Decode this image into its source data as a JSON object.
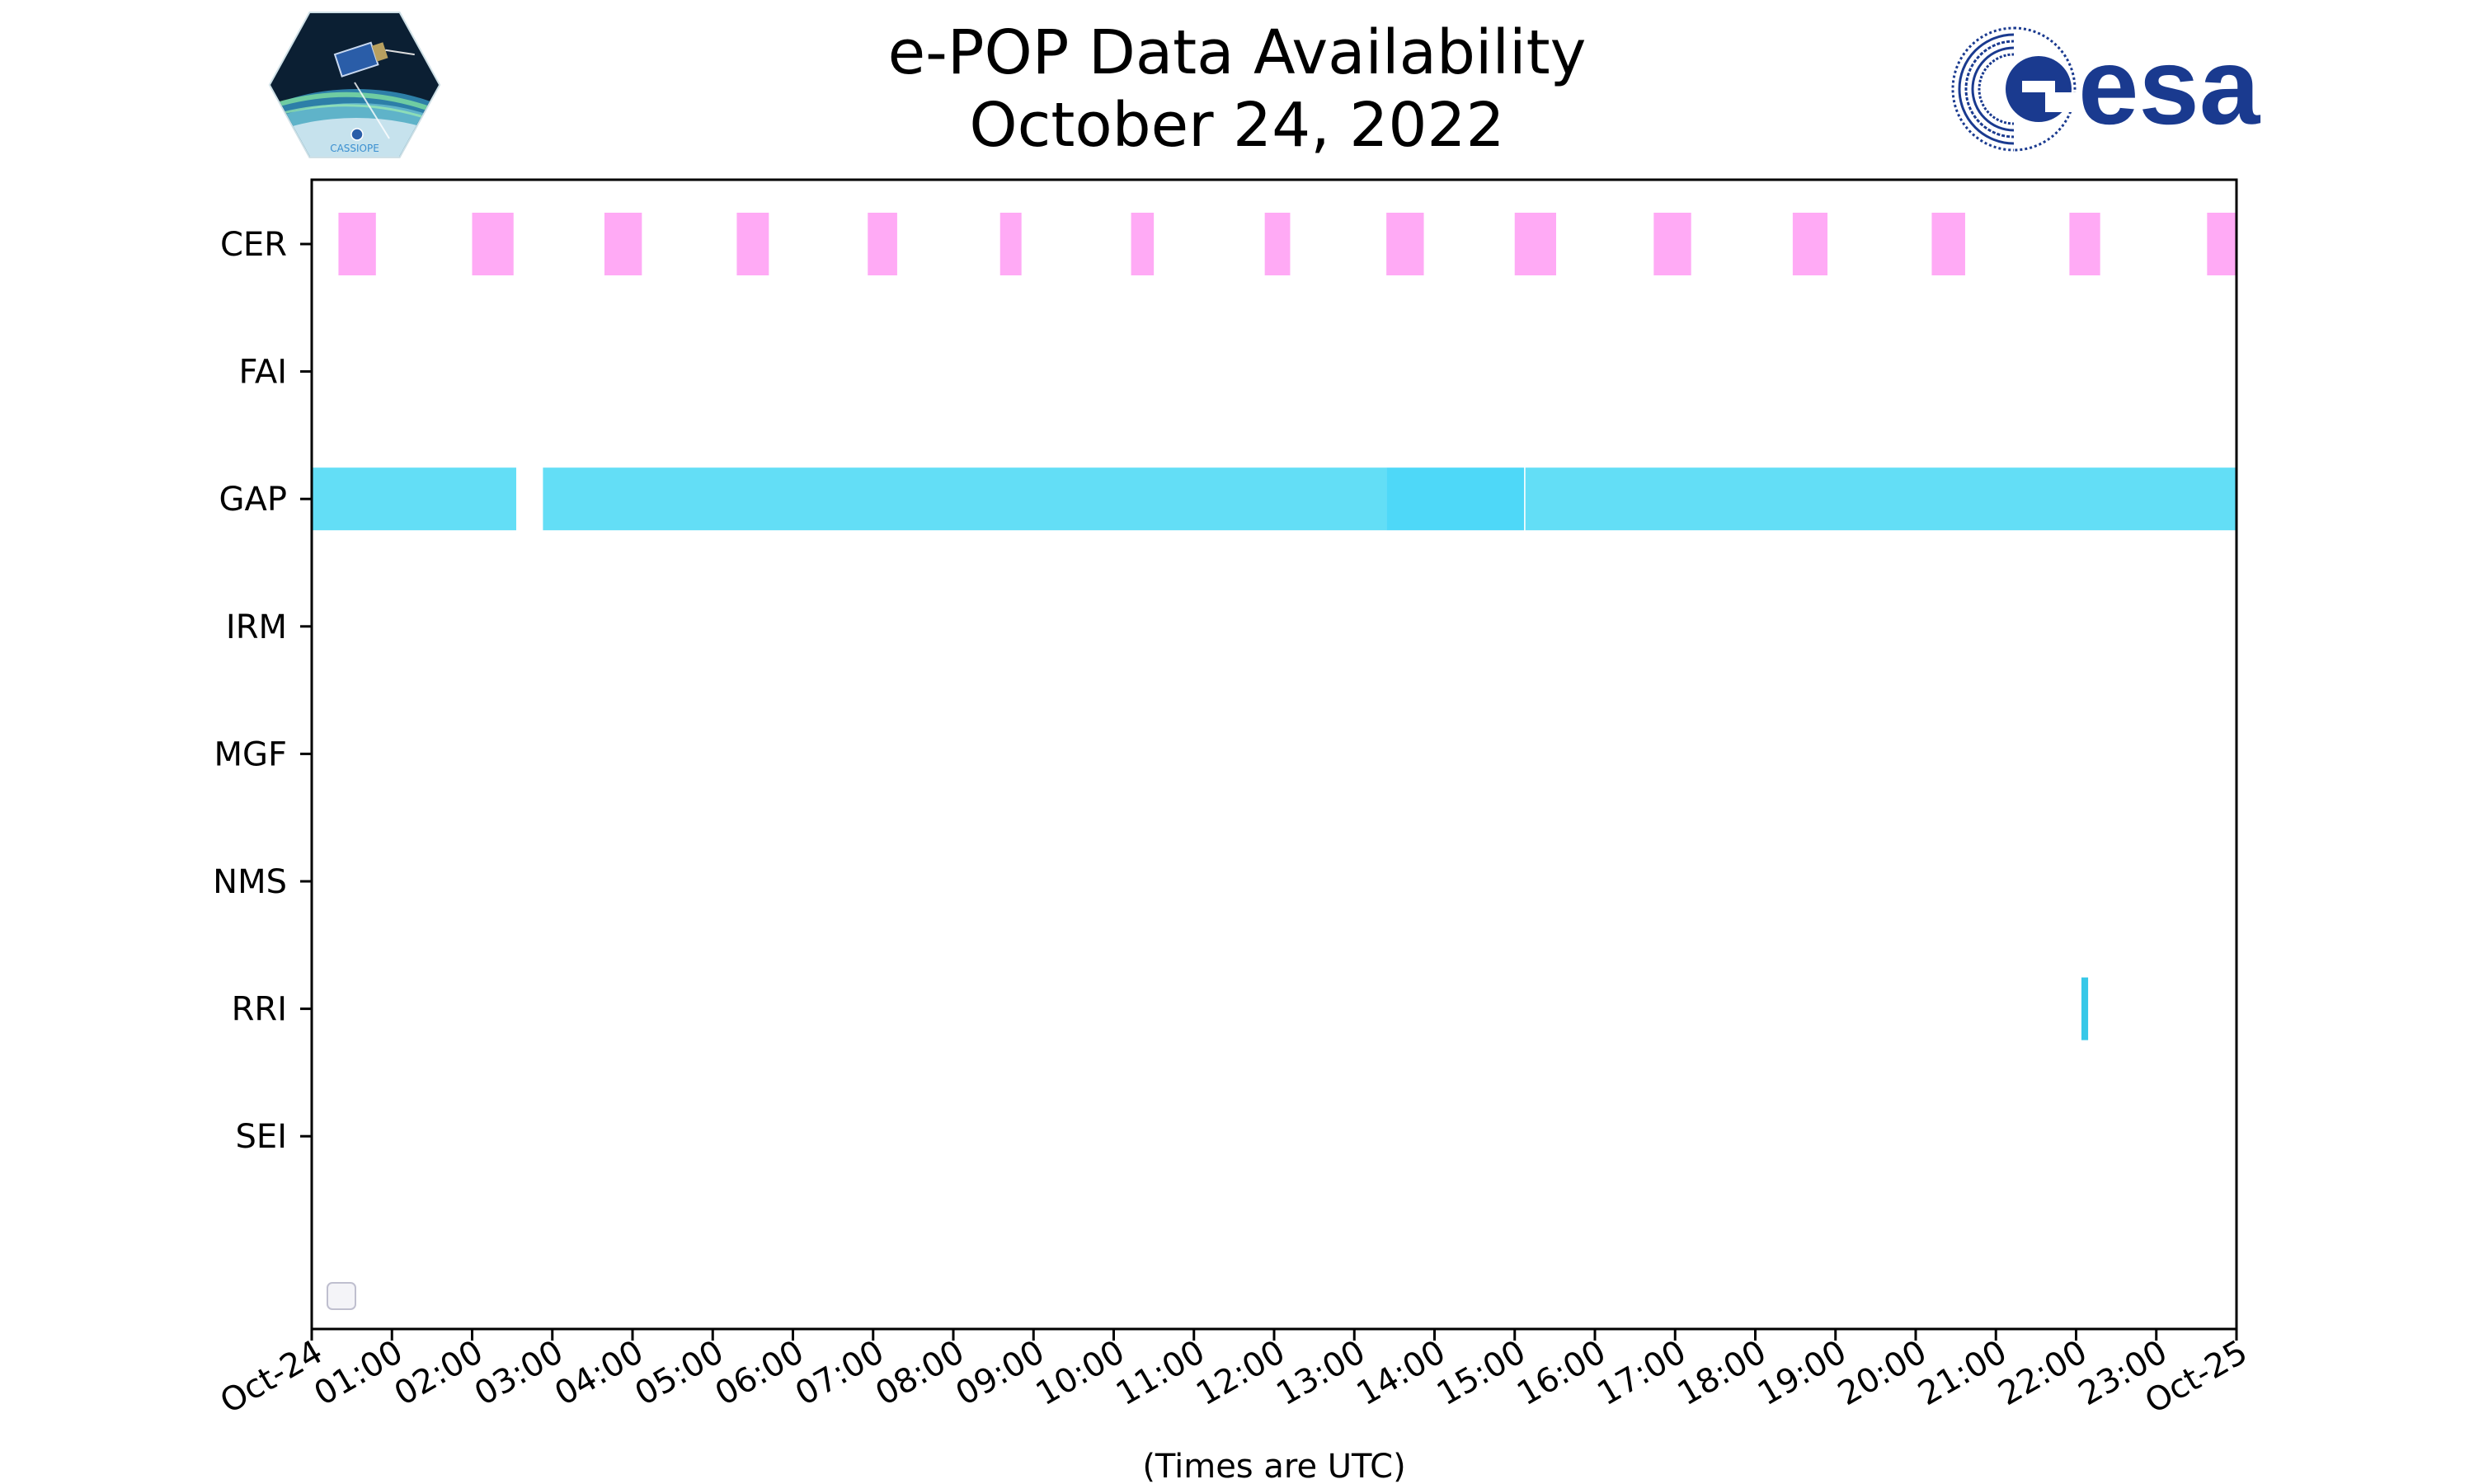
{
  "header": {
    "title_line1": "e-POP Data Availability",
    "title_line2": "October 24, 2022"
  },
  "logos": {
    "left": "CASSIOPE",
    "right": "esa"
  },
  "colors": {
    "cer": "#ffaaf5",
    "gap": "#63def6",
    "gap_dark": "#4ed8f8",
    "rri": "#37c8e8",
    "esa_blue": "#1a3a8f"
  },
  "chart_data": {
    "type": "timeline",
    "xlabel": "(Times are UTC)",
    "x_range": [
      "2022-10-24 00:00",
      "2022-10-25 00:00"
    ],
    "x_ticks": [
      "Oct-24",
      "01:00",
      "02:00",
      "03:00",
      "04:00",
      "05:00",
      "06:00",
      "07:00",
      "08:00",
      "09:00",
      "10:00",
      "11:00",
      "12:00",
      "13:00",
      "14:00",
      "15:00",
      "16:00",
      "17:00",
      "18:00",
      "19:00",
      "20:00",
      "21:00",
      "22:00",
      "23:00",
      "Oct-25"
    ],
    "instruments": [
      "CER",
      "FAI",
      "GAP",
      "IRM",
      "MGF",
      "NMS",
      "RRI",
      "SEI"
    ],
    "intervals": [
      {
        "instrument": "CER",
        "start": "00:20",
        "end": "00:48",
        "color": "#ffaaf5"
      },
      {
        "instrument": "CER",
        "start": "02:00",
        "end": "02:31",
        "color": "#ffaaf5"
      },
      {
        "instrument": "CER",
        "start": "03:39",
        "end": "04:07",
        "color": "#ffaaf5"
      },
      {
        "instrument": "CER",
        "start": "05:18",
        "end": "05:42",
        "color": "#ffaaf5"
      },
      {
        "instrument": "CER",
        "start": "06:56",
        "end": "07:18",
        "color": "#ffaaf5"
      },
      {
        "instrument": "CER",
        "start": "08:35",
        "end": "08:51",
        "color": "#ffaaf5"
      },
      {
        "instrument": "CER",
        "start": "10:13",
        "end": "10:30",
        "color": "#ffaaf5"
      },
      {
        "instrument": "CER",
        "start": "11:53",
        "end": "12:12",
        "color": "#ffaaf5"
      },
      {
        "instrument": "CER",
        "start": "13:24",
        "end": "13:52",
        "color": "#ffaaf5"
      },
      {
        "instrument": "CER",
        "start": "15:00",
        "end": "15:31",
        "color": "#ffaaf5"
      },
      {
        "instrument": "CER",
        "start": "16:44",
        "end": "17:12",
        "color": "#ffaaf5"
      },
      {
        "instrument": "CER",
        "start": "18:28",
        "end": "18:54",
        "color": "#ffaaf5"
      },
      {
        "instrument": "CER",
        "start": "20:12",
        "end": "20:37",
        "color": "#ffaaf5"
      },
      {
        "instrument": "CER",
        "start": "21:55",
        "end": "22:18",
        "color": "#ffaaf5"
      },
      {
        "instrument": "CER",
        "start": "23:38",
        "end": "24:00",
        "color": "#ffaaf5"
      },
      {
        "instrument": "GAP",
        "start": "00:00",
        "end": "02:33",
        "color": "#63def6"
      },
      {
        "instrument": "GAP",
        "start": "02:53",
        "end": "13:24",
        "color": "#63def6"
      },
      {
        "instrument": "GAP",
        "start": "13:24",
        "end": "15:07",
        "color": "#4ed8f8"
      },
      {
        "instrument": "GAP",
        "start": "15:08",
        "end": "24:00",
        "color": "#63def6"
      },
      {
        "instrument": "RRI",
        "start": "22:04",
        "end": "22:09",
        "color": "#37c8e8"
      }
    ]
  }
}
